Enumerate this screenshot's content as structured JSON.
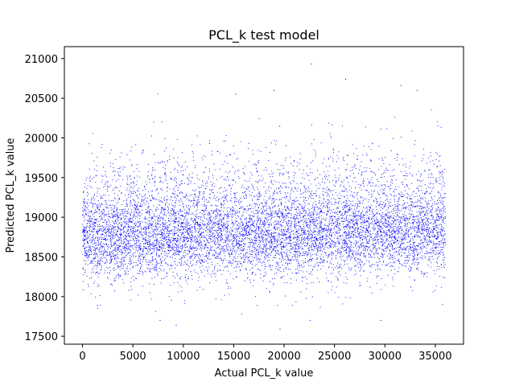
{
  "chart_data": {
    "type": "scatter",
    "title": "PCL_k test model",
    "xlabel": "Actual PCL_k value",
    "ylabel": "Predicted PCL_k value",
    "xlim": [
      -1800,
      37800
    ],
    "ylim": [
      17400,
      21150
    ],
    "xticks": [
      0,
      5000,
      10000,
      15000,
      20000,
      25000,
      30000,
      35000
    ],
    "yticks": [
      17500,
      18000,
      18500,
      19000,
      19500,
      20000,
      20500,
      21000
    ],
    "marker_color": "#0000ff",
    "grid": false,
    "legend": "none",
    "series": [
      {
        "description": "~14000 dense scatter points; x uniform over 0–36000, y concentrated 18300–19600, mean ≈18900, mode ≈18700, slight upward drift with x, outliers up to ~20950 and down to ~17600",
        "x_range": [
          0,
          36000
        ],
        "y_center": 18900,
        "y_spread_core": [
          18300,
          19600
        ],
        "outliers": [
          {
            "x": 22700,
            "y": 20930
          },
          {
            "x": 26100,
            "y": 20740
          },
          {
            "x": 31600,
            "y": 20660
          },
          {
            "x": 19600,
            "y": 17590
          },
          {
            "x": 22600,
            "y": 17700
          },
          {
            "x": 9300,
            "y": 17640
          },
          {
            "x": 7700,
            "y": 17700
          },
          {
            "x": 29600,
            "y": 17700
          },
          {
            "x": 15200,
            "y": 20550
          },
          {
            "x": 33200,
            "y": 20600
          },
          {
            "x": 19000,
            "y": 20600
          },
          {
            "x": 1500,
            "y": 17890
          }
        ]
      }
    ]
  }
}
